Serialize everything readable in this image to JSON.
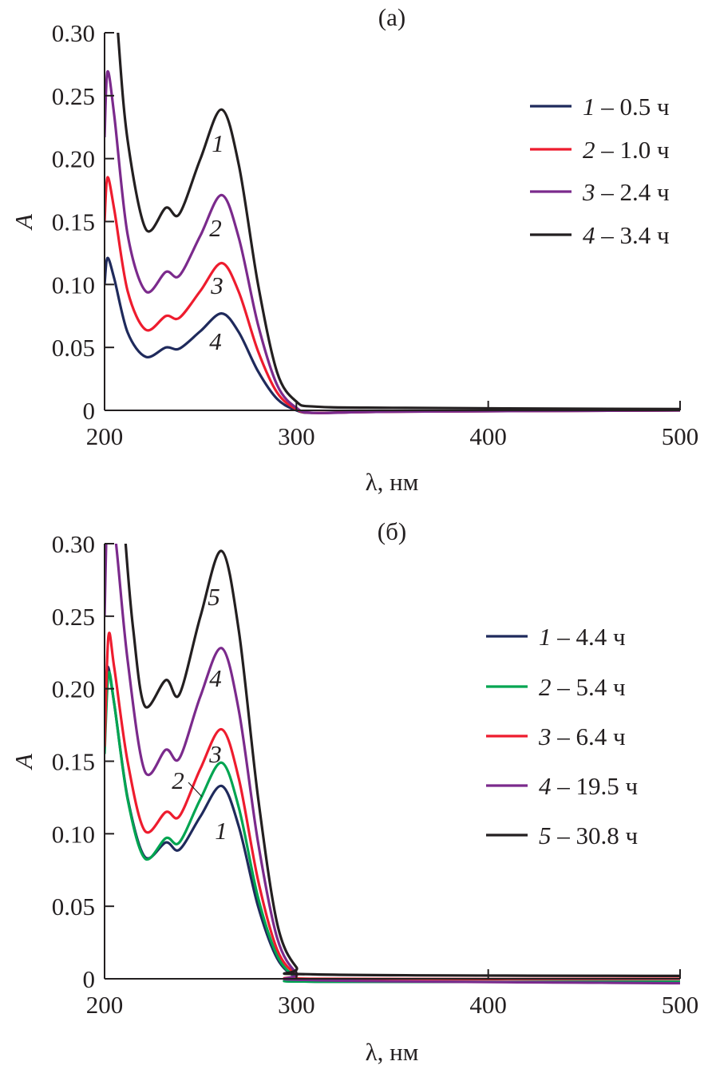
{
  "chart_data": [
    {
      "type": "line",
      "title": "(а)",
      "xlabel": "λ, нм",
      "ylabel": "A",
      "xlim": [
        200,
        500
      ],
      "ylim": [
        0,
        0.3
      ],
      "xticks": [
        "200",
        "300",
        "400",
        "500"
      ],
      "yticks": [
        "0",
        "0.05",
        "0.10",
        "0.15",
        "0.20",
        "0.25",
        "0.30"
      ],
      "grid": false,
      "legend_position": "right",
      "series": [
        {
          "name": "1",
          "label": "1",
          "time": "0.5 ч",
          "color": "#1f2a5c",
          "x": [
            200,
            201.5,
            205,
            212,
            221.5,
            232,
            239,
            250,
            261,
            270,
            280,
            290,
            300,
            310,
            350,
            500
          ],
          "y": [
            0.1,
            0.121,
            0.105,
            0.062,
            0.0425,
            0.05,
            0.049,
            0.063,
            0.077,
            0.062,
            0.031,
            0.009,
            0.0,
            -0.002,
            -0.001,
            0.0
          ]
        },
        {
          "name": "2",
          "label": "2",
          "time": "1.0 ч",
          "color": "#ee1c2e",
          "x": [
            200,
            201.5,
            205,
            212,
            221.5,
            232,
            239,
            250,
            261,
            270,
            280,
            290,
            300,
            310,
            350,
            500
          ],
          "y": [
            0.15,
            0.185,
            0.16,
            0.095,
            0.064,
            0.075,
            0.0735,
            0.095,
            0.117,
            0.094,
            0.047,
            0.014,
            0.001,
            -0.002,
            -0.001,
            0.0
          ]
        },
        {
          "name": "3",
          "label": "3",
          "time": "2.4 ч",
          "color": "#7b2a8c",
          "x": [
            200,
            201.5,
            205,
            212,
            221.5,
            232,
            239,
            250,
            261,
            270,
            280,
            290,
            300,
            310,
            350,
            500
          ],
          "y": [
            0.217,
            0.269,
            0.235,
            0.14,
            0.0945,
            0.11,
            0.107,
            0.139,
            0.171,
            0.137,
            0.068,
            0.02,
            0.002,
            -0.002,
            -0.001,
            0.0
          ]
        },
        {
          "name": "4",
          "label": "4",
          "time": "3.4 ч",
          "color": "#231f20",
          "x": [
            203,
            207,
            212,
            221.5,
            232,
            239,
            250,
            261,
            270,
            280,
            290,
            300,
            310,
            350,
            500
          ],
          "y": [
            0.4,
            0.3,
            0.215,
            0.144,
            0.161,
            0.156,
            0.2,
            0.239,
            0.195,
            0.1,
            0.03,
            0.007,
            0.003,
            0.002,
            0.001
          ]
        }
      ]
    },
    {
      "type": "line",
      "title": "(б)",
      "xlabel": "λ, нм",
      "ylabel": "A",
      "xlim": [
        200,
        500
      ],
      "ylim": [
        0,
        0.3
      ],
      "xticks": [
        "200",
        "300",
        "400",
        "500"
      ],
      "yticks": [
        "0",
        "0.05",
        "0.10",
        "0.15",
        "0.20",
        "0.25",
        "0.30"
      ],
      "grid": false,
      "legend_position": "right",
      "series": [
        {
          "name": "1",
          "label": "1",
          "time": "4.4 ч",
          "color": "#1f2a5c",
          "x": [
            200,
            201.5,
            205,
            212,
            221,
            232,
            239,
            250,
            261,
            270,
            280,
            290,
            300,
            310,
            500
          ],
          "y": [
            0.18,
            0.215,
            0.19,
            0.125,
            0.084,
            0.094,
            0.089,
            0.112,
            0.133,
            0.105,
            0.05,
            0.014,
            0.001,
            -0.002,
            -0.002
          ]
        },
        {
          "name": "2",
          "label": "2",
          "time": "5.4 ч",
          "color": "#00a551",
          "x": [
            200,
            202,
            205,
            212,
            221,
            232,
            239,
            250,
            261,
            270,
            280,
            290,
            300,
            310,
            500
          ],
          "y": [
            0.155,
            0.21,
            0.19,
            0.124,
            0.083,
            0.097,
            0.094,
            0.124,
            0.149,
            0.118,
            0.056,
            0.016,
            0.001,
            -0.002,
            -0.002
          ]
        },
        {
          "name": "3",
          "label": "3",
          "time": "6.4 ч",
          "color": "#ee1c2e",
          "x": [
            200,
            202,
            205,
            212,
            221,
            232,
            239,
            250,
            261,
            270,
            280,
            290,
            300,
            310,
            500
          ],
          "y": [
            0.16,
            0.236,
            0.215,
            0.15,
            0.102,
            0.115,
            0.112,
            0.145,
            0.172,
            0.138,
            0.068,
            0.02,
            0.003,
            0.0,
            0.0
          ]
        },
        {
          "name": "4",
          "label": "4",
          "time": "19.5 ч",
          "color": "#7b2a8c",
          "x": [
            200,
            202,
            206,
            212,
            221,
            232,
            239,
            250,
            261,
            270,
            280,
            290,
            300,
            310,
            500
          ],
          "y": [
            0.25,
            0.34,
            0.3,
            0.22,
            0.143,
            0.158,
            0.152,
            0.195,
            0.228,
            0.185,
            0.094,
            0.028,
            0.004,
            -0.001,
            -0.003
          ]
        },
        {
          "name": "5",
          "label": "5",
          "time": "30.8 ч",
          "color": "#231f20",
          "x": [
            206,
            211,
            215,
            221,
            232,
            239,
            250,
            261,
            270,
            280,
            290,
            300,
            310,
            500
          ],
          "y": [
            0.4,
            0.3,
            0.24,
            0.188,
            0.206,
            0.196,
            0.25,
            0.295,
            0.24,
            0.125,
            0.038,
            0.008,
            0.003,
            0.002
          ]
        }
      ]
    }
  ]
}
